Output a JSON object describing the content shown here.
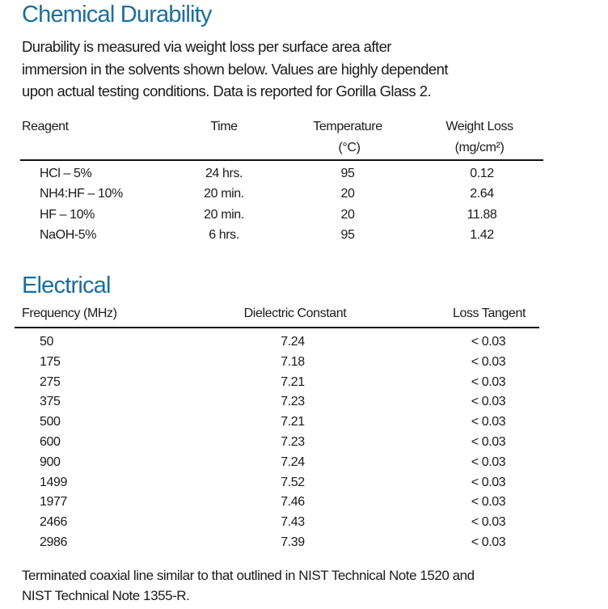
{
  "chemical": {
    "title": "Chemical Durability",
    "description": [
      "Durability is measured via weight loss per surface area after",
      "immersion in the solvents shown below. Values are highly dependent",
      "upon actual testing conditions. Data is reported for Gorilla Glass 2."
    ],
    "headers": {
      "reagent": "Reagent",
      "time": "Time",
      "temperature": "Temperature",
      "temperature_unit": "(°C)",
      "weight_loss": "Weight Loss",
      "weight_loss_unit": "(mg/cm²)"
    },
    "rows": [
      {
        "reagent": "HCl – 5%",
        "time": "24 hrs.",
        "temperature": "95",
        "weight_loss": "0.12"
      },
      {
        "reagent": "NH4:HF – 10%",
        "time": "20 min.",
        "temperature": "20",
        "weight_loss": "2.64"
      },
      {
        "reagent": "HF – 10%",
        "time": "20 min.",
        "temperature": "20",
        "weight_loss": "11.88"
      },
      {
        "reagent": "NaOH-5%",
        "time": "6 hrs.",
        "temperature": "95",
        "weight_loss": "1.42"
      }
    ]
  },
  "electrical": {
    "title": "Electrical",
    "headers": {
      "frequency": "Frequency (MHz)",
      "dielectric": "Dielectric Constant",
      "loss": "Loss Tangent"
    },
    "rows": [
      {
        "frequency": "50",
        "dielectric": "7.24",
        "loss": "< 0.03"
      },
      {
        "frequency": "175",
        "dielectric": "7.18",
        "loss": "< 0.03"
      },
      {
        "frequency": "275",
        "dielectric": "7.21",
        "loss": "< 0.03"
      },
      {
        "frequency": "375",
        "dielectric": "7.23",
        "loss": "< 0.03"
      },
      {
        "frequency": "500",
        "dielectric": "7.21",
        "loss": "< 0.03"
      },
      {
        "frequency": "600",
        "dielectric": "7.23",
        "loss": "< 0.03"
      },
      {
        "frequency": "900",
        "dielectric": "7.24",
        "loss": "< 0.03"
      },
      {
        "frequency": "1499",
        "dielectric": "7.52",
        "loss": "< 0.03"
      },
      {
        "frequency": "1977",
        "dielectric": "7.46",
        "loss": "< 0.03"
      },
      {
        "frequency": "2466",
        "dielectric": "7.43",
        "loss": "< 0.03"
      },
      {
        "frequency": "2986",
        "dielectric": "7.39",
        "loss": "< 0.03"
      }
    ],
    "footnote": [
      "Terminated coaxial line similar to that outlined in NIST Technical Note 1520 and",
      "NIST Technical Note 1355-R."
    ]
  }
}
